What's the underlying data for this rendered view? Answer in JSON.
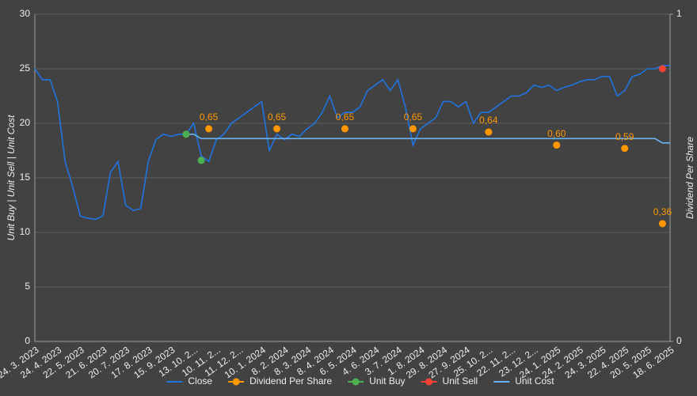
{
  "chart_data": {
    "type": "line",
    "ylabel": "Unit Buy | Unit Sell | Unit Cost",
    "y2label": "Dividend Per Share",
    "ylim": [
      0,
      30
    ],
    "yticks": [
      0,
      5,
      10,
      15,
      20,
      25,
      30
    ],
    "y2lim": [
      0,
      1
    ],
    "y2ticks": [
      0,
      1
    ],
    "grid": true,
    "legend": "bottom",
    "categories": [
      "24. 3. 2023",
      null,
      null,
      "24. 4. 2023",
      null,
      null,
      "22. 5. 2023",
      null,
      null,
      "21. 6. 2023",
      null,
      null,
      "20. 7. 2023",
      null,
      null,
      "17. 8. 2023",
      null,
      null,
      "15. 9. 2023",
      null,
      null,
      "13. 10. 2...",
      null,
      null,
      "10. 11. 2...",
      null,
      null,
      "11. 12. 2...",
      null,
      null,
      "10. 1. 2024",
      null,
      null,
      "8. 2. 2024",
      null,
      null,
      "8. 3. 2024",
      null,
      null,
      "8. 4. 2024",
      null,
      null,
      "6. 5. 2024",
      null,
      null,
      "4. 6. 2024",
      null,
      null,
      "3. 7. 2024",
      null,
      null,
      "1. 8. 2024",
      null,
      null,
      "29. 8. 2024",
      null,
      null,
      "27. 9. 2024",
      null,
      null,
      "25. 10. 2...",
      null,
      null,
      "22. 11. 2...",
      null,
      null,
      "23. 12. 2...",
      null,
      null,
      "24. 1. 2025",
      null,
      null,
      "24. 2. 2025",
      null,
      null,
      "24. 3. 2025",
      null,
      null,
      "22. 4. 2025",
      null,
      null,
      "20. 5. 2025",
      null,
      null,
      "18. 6. 2025"
    ],
    "series": [
      {
        "name": "Close",
        "color": "#1f74e0",
        "style": "line",
        "values": [
          25,
          24,
          24,
          22,
          16.5,
          14.2,
          11.5,
          11.3,
          11.2,
          11.5,
          15.5,
          16.5,
          12.5,
          12,
          12.2,
          16.5,
          18.5,
          19,
          18.8,
          19,
          19,
          20,
          17,
          16.5,
          18.5,
          19,
          20,
          20.5,
          21,
          21.5,
          22,
          17.5,
          19,
          18.5,
          19,
          18.8,
          19.5,
          20,
          21,
          22.5,
          20.5,
          21,
          21,
          21.5,
          23,
          23.5,
          24,
          23,
          24,
          21.5,
          18,
          19.5,
          20,
          20.5,
          22,
          22,
          21.5,
          22,
          20,
          21,
          21,
          21.5,
          22,
          22.5,
          22.5,
          22.8,
          23.5,
          23.3,
          23.5,
          23,
          23.3,
          23.5,
          23.8,
          24,
          24,
          24.3,
          24.3,
          22.5,
          23,
          24.3,
          24.5,
          25,
          25,
          25.3,
          25.3
        ]
      },
      {
        "name": "Dividend Per Share",
        "color": "#ff9800",
        "style": "points",
        "axis": "y2",
        "values": [
          null,
          null,
          null,
          null,
          null,
          null,
          null,
          null,
          null,
          null,
          null,
          null,
          null,
          null,
          null,
          null,
          null,
          null,
          null,
          null,
          null,
          null,
          null,
          0.65,
          null,
          null,
          null,
          null,
          null,
          null,
          null,
          null,
          0.65,
          null,
          null,
          null,
          null,
          null,
          null,
          null,
          null,
          0.65,
          null,
          null,
          null,
          null,
          null,
          null,
          null,
          null,
          0.65,
          null,
          null,
          null,
          null,
          null,
          null,
          null,
          null,
          null,
          0.64,
          null,
          null,
          null,
          null,
          null,
          null,
          null,
          null,
          0.6,
          null,
          null,
          null,
          null,
          null,
          null,
          null,
          null,
          0.59,
          null,
          null,
          null,
          null,
          0.36,
          null
        ],
        "value_labels": [
          null,
          null,
          null,
          null,
          null,
          null,
          null,
          null,
          null,
          null,
          null,
          null,
          null,
          null,
          null,
          null,
          null,
          null,
          null,
          null,
          null,
          null,
          null,
          "0,65",
          null,
          null,
          null,
          null,
          null,
          null,
          null,
          null,
          "0,65",
          null,
          null,
          null,
          null,
          null,
          null,
          null,
          null,
          "0,65",
          null,
          null,
          null,
          null,
          null,
          null,
          null,
          null,
          "0,65",
          null,
          null,
          null,
          null,
          null,
          null,
          null,
          null,
          null,
          "0,64",
          null,
          null,
          null,
          null,
          null,
          null,
          null,
          null,
          "0,60",
          null,
          null,
          null,
          null,
          null,
          null,
          null,
          null,
          "0,59",
          null,
          null,
          null,
          null,
          "0,36",
          null
        ]
      },
      {
        "name": "Unit Buy",
        "color": "#4caf50",
        "style": "points",
        "values": [
          null,
          null,
          null,
          null,
          null,
          null,
          null,
          null,
          null,
          null,
          null,
          null,
          null,
          null,
          null,
          null,
          null,
          null,
          null,
          null,
          19,
          null,
          16.6,
          null,
          null,
          null,
          null,
          null,
          null,
          null,
          null,
          null,
          null,
          null,
          null,
          null,
          null,
          null,
          null,
          null,
          null,
          null,
          null,
          null,
          null,
          null,
          null,
          null,
          null,
          null,
          null,
          null,
          null,
          null,
          null,
          null,
          null,
          null,
          null,
          null,
          null,
          null,
          null,
          null,
          null,
          null,
          null,
          null,
          null,
          null,
          null,
          null,
          null,
          null,
          null,
          null,
          null,
          null,
          null,
          null,
          null,
          null,
          null,
          null,
          null
        ]
      },
      {
        "name": "Unit Sell",
        "color": "#f44336",
        "style": "points",
        "values": [
          null,
          null,
          null,
          null,
          null,
          null,
          null,
          null,
          null,
          null,
          null,
          null,
          null,
          null,
          null,
          null,
          null,
          null,
          null,
          null,
          null,
          null,
          null,
          null,
          null,
          null,
          null,
          null,
          null,
          null,
          null,
          null,
          null,
          null,
          null,
          null,
          null,
          null,
          null,
          null,
          null,
          null,
          null,
          null,
          null,
          null,
          null,
          null,
          null,
          null,
          null,
          null,
          null,
          null,
          null,
          null,
          null,
          null,
          null,
          null,
          null,
          null,
          null,
          null,
          null,
          null,
          null,
          null,
          null,
          null,
          null,
          null,
          null,
          null,
          null,
          null,
          null,
          null,
          null,
          null,
          null,
          null,
          null,
          25,
          null
        ]
      },
      {
        "name": "Unit Cost",
        "color": "#6ab4f5",
        "style": "line",
        "values": [
          null,
          null,
          null,
          null,
          null,
          null,
          null,
          null,
          null,
          null,
          null,
          null,
          null,
          null,
          null,
          null,
          null,
          null,
          null,
          null,
          19,
          19,
          18.6,
          18.6,
          18.6,
          18.6,
          18.6,
          18.6,
          18.6,
          18.6,
          18.6,
          18.6,
          18.6,
          18.6,
          18.6,
          18.6,
          18.6,
          18.6,
          18.6,
          18.6,
          18.6,
          18.6,
          18.6,
          18.6,
          18.6,
          18.6,
          18.6,
          18.6,
          18.6,
          18.6,
          18.6,
          18.6,
          18.6,
          18.6,
          18.6,
          18.6,
          18.6,
          18.6,
          18.6,
          18.6,
          18.6,
          18.6,
          18.6,
          18.6,
          18.6,
          18.6,
          18.6,
          18.6,
          18.6,
          18.6,
          18.6,
          18.6,
          18.6,
          18.6,
          18.6,
          18.6,
          18.6,
          18.6,
          18.6,
          18.6,
          18.6,
          18.6,
          18.6,
          18.2,
          18.2
        ]
      }
    ]
  }
}
